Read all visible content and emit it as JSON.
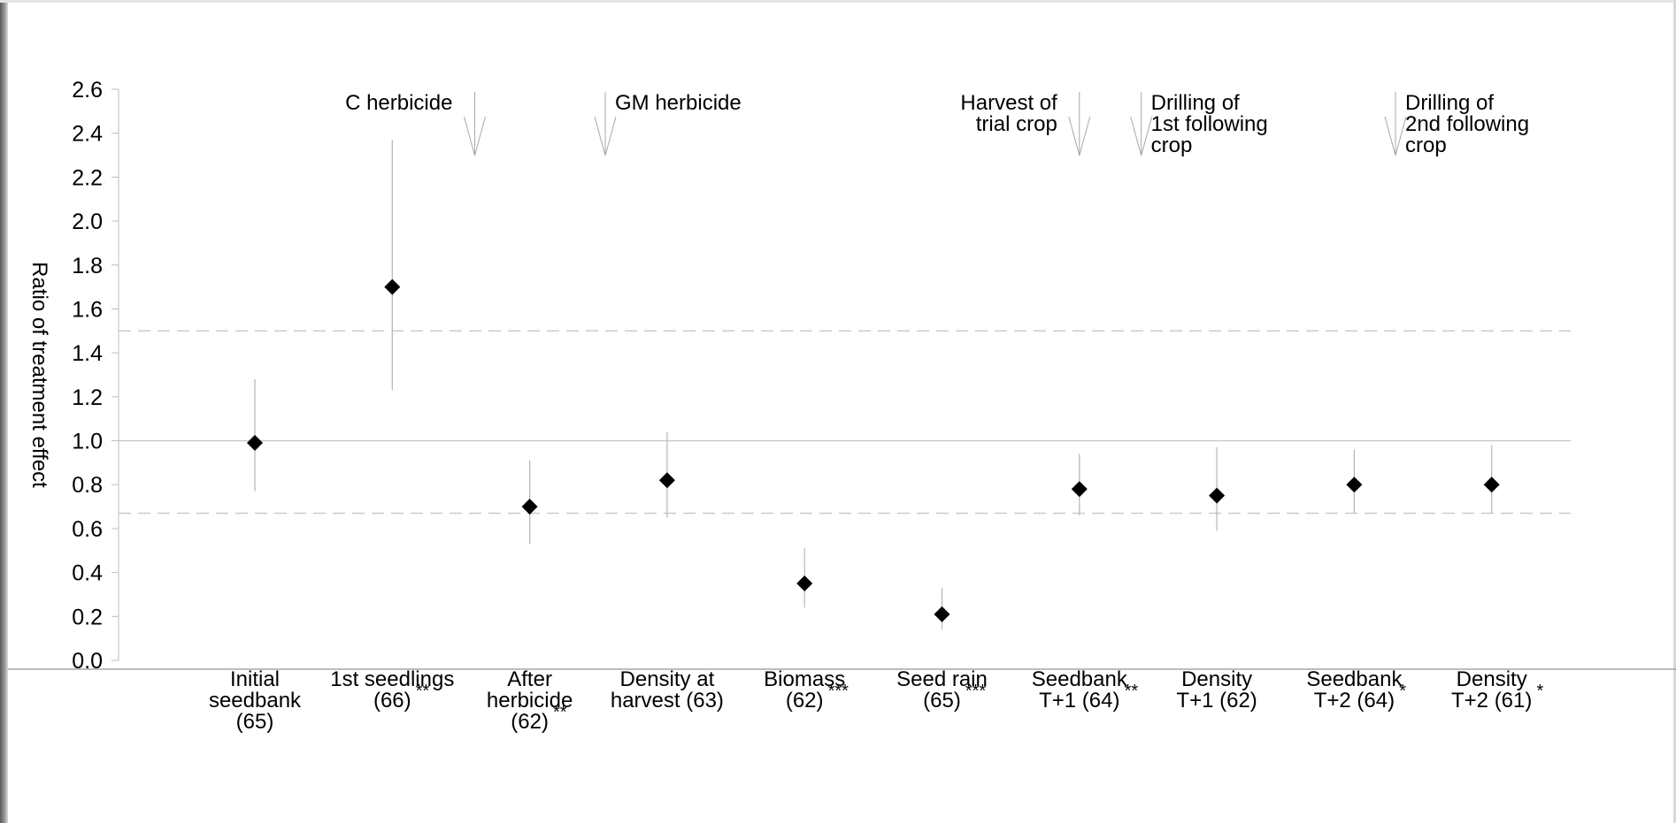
{
  "chart_data": {
    "type": "scatter",
    "ylabel": "Ratio of treatment effect",
    "xlabel": "",
    "ylim": [
      0,
      2.6
    ],
    "y_ticks": [
      "0.0",
      "0.2",
      "0.4",
      "0.6",
      "0.8",
      "1.0",
      "1.2",
      "1.4",
      "1.6",
      "1.8",
      "2.0",
      "2.2",
      "2.4",
      "2.6"
    ],
    "reference_lines": [
      {
        "value": 1.0,
        "style": "solid"
      },
      {
        "value": 1.5,
        "style": "dashed"
      },
      {
        "value": 0.67,
        "style": "dashed"
      }
    ],
    "categories": [
      {
        "lines": [
          "Initial",
          "seedbank",
          "(65)"
        ],
        "sig": ""
      },
      {
        "lines": [
          "1st seedlings",
          "(66)"
        ],
        "sig": "**"
      },
      {
        "lines": [
          "After",
          "herbicide",
          "(62)"
        ],
        "sig": "**"
      },
      {
        "lines": [
          "Density at",
          "harvest (63)"
        ],
        "sig": ""
      },
      {
        "lines": [
          "Biomass",
          "(62)"
        ],
        "sig": "***"
      },
      {
        "lines": [
          "Seed rain",
          "(65)"
        ],
        "sig": "***"
      },
      {
        "lines": [
          "Seedbank",
          "T+1 (64)"
        ],
        "sig": "**"
      },
      {
        "lines": [
          "Density",
          "T+1 (62)"
        ],
        "sig": ""
      },
      {
        "lines": [
          "Seedbank",
          "T+2 (64)"
        ],
        "sig": "*"
      },
      {
        "lines": [
          "Density",
          "T+2 (61)"
        ],
        "sig": "*"
      }
    ],
    "points": [
      {
        "y": 0.99,
        "low": 0.77,
        "high": 1.28
      },
      {
        "y": 1.7,
        "low": 1.23,
        "high": 2.37
      },
      {
        "y": 0.7,
        "low": 0.53,
        "high": 0.91
      },
      {
        "y": 0.82,
        "low": 0.65,
        "high": 1.04
      },
      {
        "y": 0.35,
        "low": 0.24,
        "high": 0.51
      },
      {
        "y": 0.21,
        "low": 0.14,
        "high": 0.33
      },
      {
        "y": 0.78,
        "low": 0.66,
        "high": 0.94
      },
      {
        "y": 0.75,
        "low": 0.59,
        "high": 0.97
      },
      {
        "y": 0.8,
        "low": 0.67,
        "high": 0.96
      },
      {
        "y": 0.8,
        "low": 0.67,
        "high": 0.98
      }
    ],
    "annotations": [
      {
        "lines": [
          "C herbicide"
        ],
        "after_category": 1.6
      },
      {
        "lines": [
          "GM herbicide"
        ],
        "after_category": 2.55
      },
      {
        "lines": [
          "Harvest of",
          "trial crop"
        ],
        "after_category": 6.0
      },
      {
        "lines": [
          "Drilling of",
          "1st following",
          "crop"
        ],
        "after_category": 6.45
      },
      {
        "lines": [
          "Drilling of",
          "2nd following",
          "crop"
        ],
        "after_category": 8.3
      }
    ],
    "grid": false,
    "legend": "none"
  }
}
